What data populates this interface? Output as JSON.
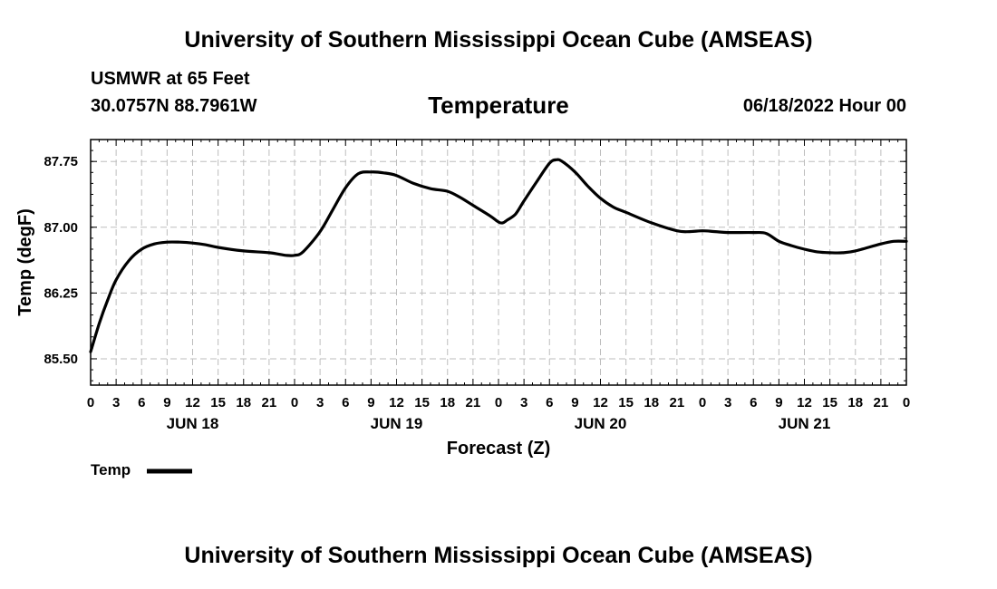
{
  "header": {
    "title": "University of Southern Mississippi Ocean Cube (AMSEAS)",
    "station": "USMWR at 65 Feet",
    "coords": "30.0757N  88.7961W",
    "variable": "Temperature",
    "datetime": "06/18/2022 Hour 00"
  },
  "footer": {
    "title": "University of Southern Mississippi Ocean Cube (AMSEAS)"
  },
  "legend": {
    "label": "Temp"
  },
  "colors": {
    "line": "#000000",
    "grid": "#bdbdbd",
    "axis": "#000000"
  },
  "chart_data": {
    "type": "line",
    "title": "Temperature",
    "xlabel": "Forecast (Z)",
    "ylabel": "Temp (degF)",
    "xlim": [
      0,
      96
    ],
    "ylim": [
      85.2,
      88.0
    ],
    "yticks": [
      85.5,
      86.25,
      87.0,
      87.75
    ],
    "ytick_labels": [
      "85.50",
      "86.25",
      "87.00",
      "87.75"
    ],
    "xticks": [
      0,
      3,
      6,
      9,
      12,
      15,
      18,
      21,
      24,
      27,
      30,
      33,
      36,
      39,
      42,
      45,
      48,
      51,
      54,
      57,
      60,
      63,
      66,
      69,
      72,
      75,
      78,
      81,
      84,
      87,
      90,
      93,
      96
    ],
    "xtick_labels": [
      "0",
      "3",
      "6",
      "9",
      "12",
      "15",
      "18",
      "21",
      "0",
      "3",
      "6",
      "9",
      "12",
      "15",
      "18",
      "21",
      "0",
      "3",
      "6",
      "9",
      "12",
      "15",
      "18",
      "21",
      "0",
      "3",
      "6",
      "9",
      "12",
      "15",
      "18",
      "21",
      "0"
    ],
    "day_labels": [
      {
        "label": "JUN 18",
        "at": 12
      },
      {
        "label": "JUN 19",
        "at": 36
      },
      {
        "label": "JUN 20",
        "at": 60
      },
      {
        "label": "JUN 21",
        "at": 84
      }
    ],
    "grid": true,
    "series": [
      {
        "name": "Temp",
        "x": [
          0,
          1,
          2,
          3,
          4.5,
          6,
          7.5,
          9,
          10.5,
          12,
          13.5,
          15,
          18,
          21,
          23,
          24,
          25,
          27,
          28.5,
          30,
          31.5,
          33,
          34.5,
          36,
          38,
          40,
          42,
          43.5,
          45,
          47,
          48,
          48.5,
          49,
          50,
          51,
          52.5,
          54,
          54.8,
          55.5,
          57,
          58.5,
          60,
          61.5,
          63,
          66,
          69,
          70.5,
          72,
          73.5,
          75,
          78,
          79.5,
          81,
          82.5,
          84,
          85.5,
          87,
          88.5,
          90,
          93,
          94.5,
          96
        ],
        "values": [
          85.58,
          85.9,
          86.17,
          86.4,
          86.62,
          86.75,
          86.81,
          86.83,
          86.83,
          86.82,
          86.8,
          86.77,
          86.73,
          86.71,
          86.68,
          86.68,
          86.72,
          86.95,
          87.2,
          87.45,
          87.61,
          87.63,
          87.62,
          87.59,
          87.5,
          87.44,
          87.41,
          87.34,
          87.25,
          87.13,
          87.06,
          87.05,
          87.08,
          87.15,
          87.3,
          87.52,
          87.73,
          87.77,
          87.75,
          87.63,
          87.47,
          87.33,
          87.23,
          87.17,
          87.05,
          86.96,
          86.95,
          86.96,
          86.95,
          86.94,
          86.94,
          86.93,
          86.84,
          86.79,
          86.75,
          86.72,
          86.71,
          86.71,
          86.73,
          86.81,
          86.84,
          86.84
        ]
      }
    ]
  }
}
